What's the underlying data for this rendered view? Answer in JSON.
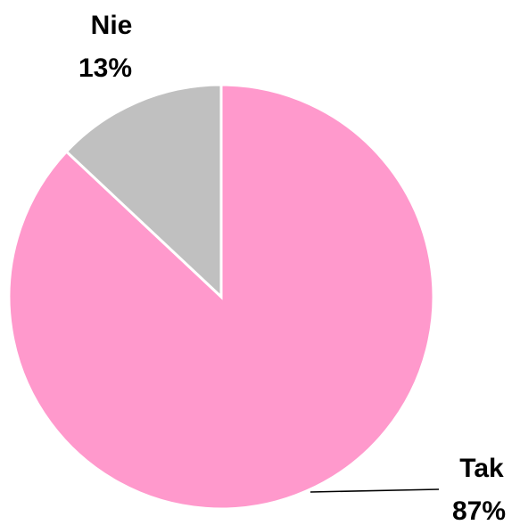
{
  "chart_data": {
    "type": "pie",
    "categories": [
      "Tak",
      "Nie"
    ],
    "values": [
      87,
      13
    ],
    "value_labels": [
      "87%",
      "13%"
    ],
    "colors": [
      "#ff99cc",
      "#c0c0c0"
    ]
  }
}
